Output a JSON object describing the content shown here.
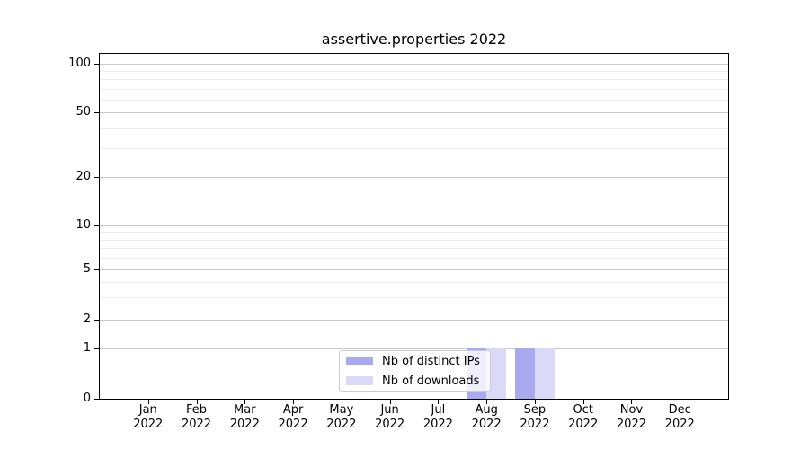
{
  "chart_data": {
    "type": "bar",
    "title": "assertive.properties 2022",
    "categories": [
      "Jan 2022",
      "Feb 2022",
      "Mar 2022",
      "Apr 2022",
      "May 2022",
      "Jun 2022",
      "Jul 2022",
      "Aug 2022",
      "Sep 2022",
      "Oct 2022",
      "Nov 2022",
      "Dec 2022"
    ],
    "series": [
      {
        "name": "Nb of distinct IPs",
        "color": "#a9a9f0",
        "values": [
          0,
          0,
          0,
          0,
          0,
          0,
          0,
          1,
          1,
          0,
          0,
          0
        ]
      },
      {
        "name": "Nb of downloads",
        "color": "#dadaf8",
        "values": [
          0,
          0,
          0,
          0,
          0,
          0,
          0,
          1,
          1,
          0,
          0,
          0
        ]
      }
    ],
    "yscale": "symlog",
    "y_major_ticks": [
      0,
      1,
      2,
      5,
      10,
      20,
      50,
      100
    ],
    "y_minor_ticks": [
      3,
      4,
      6,
      7,
      8,
      9,
      30,
      40,
      60,
      70,
      80,
      90
    ],
    "ylim": [
      0,
      115
    ],
    "grid": "horizontal",
    "legend_position": "inside-bottom-center"
  },
  "colors": {
    "major_grid": "#c9c9c9",
    "minor_grid": "#ececec",
    "spine": "#000000",
    "legend_border": "#cccccc",
    "bar_distinct_ips": "#a9a9f0",
    "bar_downloads": "#dadaf8"
  }
}
